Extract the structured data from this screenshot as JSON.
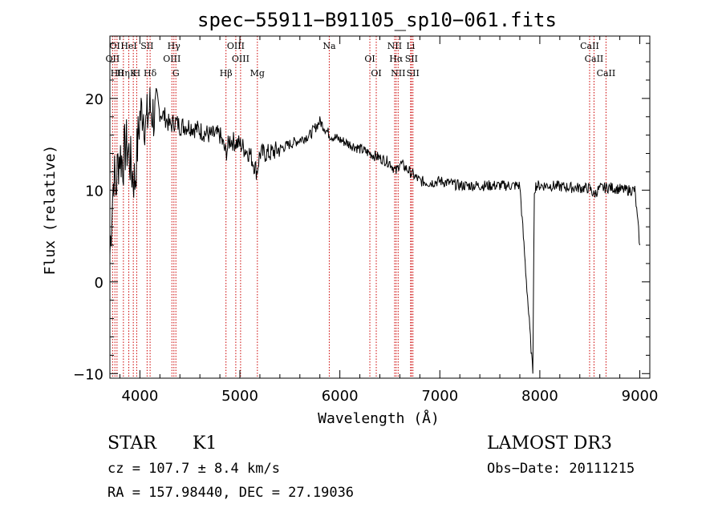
{
  "chart_data": {
    "type": "line",
    "title": "spec−55911−B91105_sp10−061.fits",
    "xlabel": "Wavelength (Å)",
    "ylabel": "Flux (relative)",
    "xlim": [
      3700,
      9100
    ],
    "ylim": [
      -10.5,
      26.8
    ],
    "x_ticks": [
      4000,
      5000,
      6000,
      7000,
      8000,
      9000
    ],
    "x_tick_labels": [
      "4000",
      "5000",
      "6000",
      "7000",
      "8000",
      "9000"
    ],
    "y_ticks": [
      -10,
      0,
      10,
      20
    ],
    "y_tick_labels": [
      "−10",
      "0",
      "10",
      "20"
    ],
    "series": [
      {
        "name": "flux",
        "color": "#000000",
        "x": [
          3700,
          3720,
          3740,
          3760,
          3780,
          3800,
          3830,
          3860,
          3890,
          3920,
          3950,
          3970,
          4000,
          4030,
          4060,
          4100,
          4150,
          4200,
          4250,
          4300,
          4350,
          4400,
          4500,
          4600,
          4700,
          4800,
          4860,
          4900,
          5000,
          5100,
          5170,
          5200,
          5300,
          5400,
          5500,
          5600,
          5700,
          5800,
          5900,
          6000,
          6100,
          6200,
          6300,
          6400,
          6500,
          6563,
          6600,
          6700,
          6800,
          6900,
          7000,
          7200,
          7400,
          7600,
          7800,
          7930,
          7945,
          7960,
          8100,
          8300,
          8500,
          8540,
          8600,
          8700,
          8850,
          8950,
          9000
        ],
        "y": [
          3,
          8,
          12,
          10,
          13,
          14,
          13,
          15,
          14,
          12,
          11,
          14,
          18,
          19,
          17,
          19,
          18,
          18.5,
          18,
          17,
          17.5,
          17,
          17,
          16.5,
          16,
          16,
          14,
          15.5,
          15,
          14,
          12,
          14,
          14,
          14.5,
          15,
          15.5,
          16,
          17.5,
          16,
          15.5,
          15,
          14.5,
          14,
          13.5,
          13,
          12,
          13,
          12,
          11,
          10.8,
          11,
          10.5,
          10.5,
          10.5,
          10.5,
          -10,
          10,
          10.5,
          10.5,
          10.3,
          10.2,
          9.5,
          10.2,
          10.3,
          10,
          10,
          4
        ]
      }
    ],
    "line_groups": [
      {
        "name": "OI",
        "x": 3727,
        "label": "OII",
        "row": 1
      },
      {
        "name": "He",
        "x": 3750,
        "label": "OI",
        "row": 0
      },
      {
        "name": "Hθ",
        "x": 3771,
        "label": "Hθ",
        "row": 2
      },
      {
        "name": "Hη",
        "x": 3835,
        "label": "Hη",
        "row": 3
      },
      {
        "name": "HeI",
        "x": 3889,
        "label": "HeI",
        "row": 0
      },
      {
        "name": "K",
        "x": 3934,
        "label": "K",
        "row": 2
      },
      {
        "name": "H",
        "x": 3968,
        "label": "H",
        "row": 3
      },
      {
        "name": "SII",
        "x": 4072,
        "label": "SII",
        "row": 0
      },
      {
        "name": "Hδ",
        "x": 4102,
        "label": "Hδ",
        "row": 2
      },
      {
        "name": "OIII",
        "x": 4320,
        "label": "OIII",
        "row": 1
      },
      {
        "name": "Hγ",
        "x": 4340,
        "label": "Hγ",
        "row": 0
      },
      {
        "name": "G",
        "x": 4360,
        "label": "G",
        "row": 3
      },
      {
        "name": "Hβ",
        "x": 4861,
        "label": "Hβ",
        "row": 3
      },
      {
        "name": "OIII1",
        "x": 4959,
        "label": "OIII",
        "row": 0
      },
      {
        "name": "OIII2",
        "x": 5007,
        "label": "OIII",
        "row": 1
      },
      {
        "name": "Mg",
        "x": 5175,
        "label": "Mg",
        "row": 3
      },
      {
        "name": "Na",
        "x": 5894,
        "label": "Na",
        "row": 0
      },
      {
        "name": "OI1",
        "x": 6300,
        "label": "OI",
        "row": 1
      },
      {
        "name": "OI2",
        "x": 6364,
        "label": "OI",
        "row": 3
      },
      {
        "name": "NII1",
        "x": 6548,
        "label": "NII",
        "row": 0
      },
      {
        "name": "Hα",
        "x": 6563,
        "label": "Hα",
        "row": 1
      },
      {
        "name": "NII2",
        "x": 6583,
        "label": "NII",
        "row": 3
      },
      {
        "name": "Li",
        "x": 6708,
        "label": "Li",
        "row": 0
      },
      {
        "name": "SII1",
        "x": 6716,
        "label": "SII",
        "row": 1
      },
      {
        "name": "SII2",
        "x": 6731,
        "label": "SII",
        "row": 3
      },
      {
        "name": "CaII1",
        "x": 8498,
        "label": "CaII",
        "row": 0
      },
      {
        "name": "CaII2",
        "x": 8542,
        "label": "CaII",
        "row": 1
      },
      {
        "name": "CaII3",
        "x": 8662,
        "label": "CaII",
        "row": 3
      }
    ]
  },
  "info": {
    "class": "STAR",
    "subclass": "K1",
    "survey": "LAMOST DR3",
    "cz": "cz = 107.7 ± 8.4 km/s",
    "obs_date": "Obs−Date: 20111215",
    "coords": "RA = 157.98440, DEC =  27.19036"
  },
  "colors": {
    "line_marker": "#cc0000",
    "axis": "#000000",
    "flux": "#000000"
  }
}
